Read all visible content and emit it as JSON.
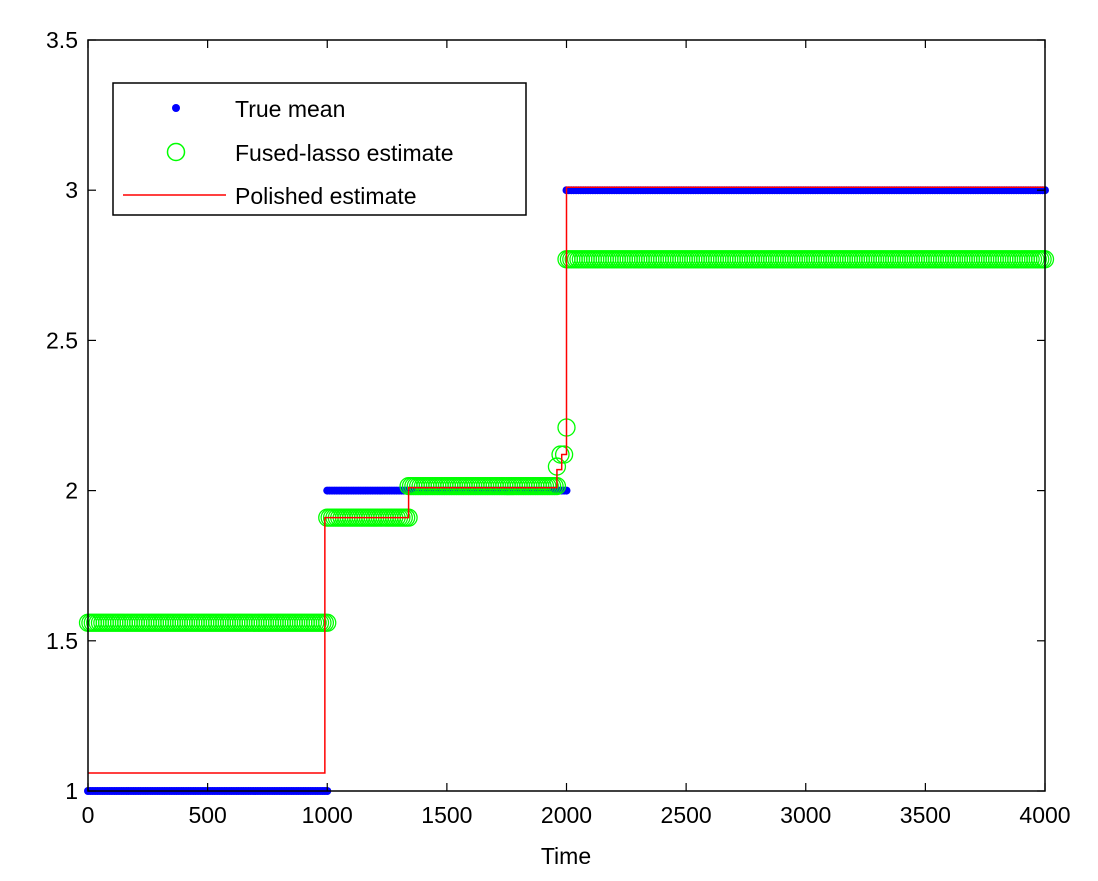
{
  "chart_data": {
    "type": "line",
    "title": "",
    "xlabel": "Time",
    "ylabel": "",
    "xlim": [
      0,
      4000
    ],
    "ylim": [
      1,
      3.5
    ],
    "xticks": [
      0,
      500,
      1000,
      1500,
      2000,
      2500,
      3000,
      3500,
      4000
    ],
    "yticks": [
      1,
      1.5,
      2,
      2.5,
      3,
      3.5
    ],
    "ytick_labels": [
      "1",
      "1.5",
      "2",
      "2.5",
      "3",
      "3.5"
    ],
    "grid": false,
    "legend_position": "top-left",
    "colors": {
      "true_mean": "#0000ff",
      "fused_lasso": "#00ff00",
      "polished": "#ff0000"
    },
    "series": [
      {
        "name": "True mean",
        "style": "dots",
        "segments": [
          {
            "x_start": 0,
            "x_end": 1000,
            "y": 1.0
          },
          {
            "x_start": 1000,
            "x_end": 2000,
            "y": 2.0
          },
          {
            "x_start": 2000,
            "x_end": 4000,
            "y": 3.0
          }
        ]
      },
      {
        "name": "Fused-lasso estimate",
        "style": "circles",
        "segments": [
          {
            "x_start": 0,
            "x_end": 1000,
            "y": 1.56
          },
          {
            "x_start": 1000,
            "x_end": 1340,
            "y": 1.91
          },
          {
            "x_start": 1340,
            "x_end": 1960,
            "y": 2.015
          },
          {
            "x_start": 2000,
            "x_end": 4000,
            "y": 2.77
          }
        ],
        "points": [
          {
            "x": 1960,
            "y": 2.08
          },
          {
            "x": 1975,
            "y": 2.12
          },
          {
            "x": 1990,
            "y": 2.12
          },
          {
            "x": 2000,
            "y": 2.21
          }
        ]
      },
      {
        "name": "Polished estimate",
        "style": "step-line",
        "x": [
          0,
          990,
          990,
          1340,
          1340,
          1960,
          1960,
          1980,
          1980,
          2000,
          2000,
          4000
        ],
        "y": [
          1.06,
          1.06,
          1.91,
          1.91,
          2.01,
          2.01,
          2.07,
          2.07,
          2.12,
          2.12,
          3.01,
          3.01
        ]
      }
    ]
  }
}
